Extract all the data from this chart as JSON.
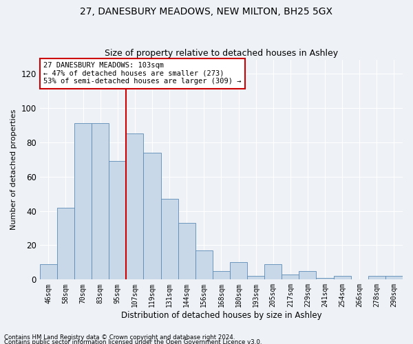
{
  "title1": "27, DANESBURY MEADOWS, NEW MILTON, BH25 5GX",
  "title2": "Size of property relative to detached houses in Ashley",
  "xlabel": "Distribution of detached houses by size in Ashley",
  "ylabel": "Number of detached properties",
  "categories": [
    "46sqm",
    "58sqm",
    "70sqm",
    "83sqm",
    "95sqm",
    "107sqm",
    "119sqm",
    "131sqm",
    "144sqm",
    "156sqm",
    "168sqm",
    "180sqm",
    "193sqm",
    "205sqm",
    "217sqm",
    "229sqm",
    "241sqm",
    "254sqm",
    "266sqm",
    "278sqm",
    "290sqm"
  ],
  "values": [
    9,
    42,
    91,
    91,
    69,
    85,
    74,
    47,
    33,
    17,
    5,
    10,
    2,
    9,
    3,
    5,
    1,
    2,
    0,
    2,
    2
  ],
  "bar_color": "#c8d8e8",
  "bar_edge_color": "#5b8ab5",
  "vline_color": "#cc0000",
  "vline_pos": 4.5,
  "annotation_text": "27 DANESBURY MEADOWS: 103sqm\n← 47% of detached houses are smaller (273)\n53% of semi-detached houses are larger (309) →",
  "annotation_box_color": "#ffffff",
  "annotation_box_edge": "#cc0000",
  "ylim": [
    0,
    128
  ],
  "yticks": [
    0,
    20,
    40,
    60,
    80,
    100,
    120
  ],
  "footer1": "Contains HM Land Registry data © Crown copyright and database right 2024.",
  "footer2": "Contains public sector information licensed under the Open Government Licence v3.0.",
  "bg_color": "#eef2f7",
  "grid_color": "#ffffff",
  "title1_fontsize": 10,
  "title2_fontsize": 9,
  "tick_fontsize": 7,
  "ylabel_fontsize": 8,
  "xlabel_fontsize": 8.5
}
